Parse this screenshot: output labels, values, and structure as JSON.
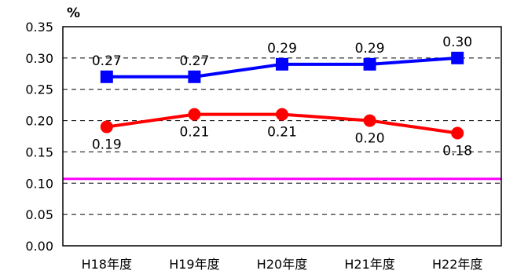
{
  "chart_data": {
    "type": "line",
    "title": "",
    "xlabel": "",
    "ylabel": "%",
    "ylim": [
      0.0,
      0.35
    ],
    "y_ticks": [
      "0.00",
      "0.05",
      "0.10",
      "0.15",
      "0.20",
      "0.25",
      "0.30",
      "0.35"
    ],
    "categories": [
      "H18年度",
      "H19年度",
      "H20年度",
      "H21年度",
      "H22年度"
    ],
    "grid": "horizontal dashed",
    "reference_line": {
      "value": 0.107,
      "color": "#ff00ff"
    },
    "series": [
      {
        "color": "#0000ff",
        "marker": "square",
        "values": [
          0.27,
          0.27,
          0.29,
          0.29,
          0.3
        ],
        "labels": [
          "0.27",
          "0.27",
          "0.29",
          "0.29",
          "0.30"
        ]
      },
      {
        "color": "#ff0000",
        "marker": "circle",
        "values": [
          0.19,
          0.21,
          0.21,
          0.2,
          0.18
        ],
        "labels": [
          "0.19",
          "0.21",
          "0.21",
          "0.20",
          "0.18"
        ]
      }
    ]
  }
}
